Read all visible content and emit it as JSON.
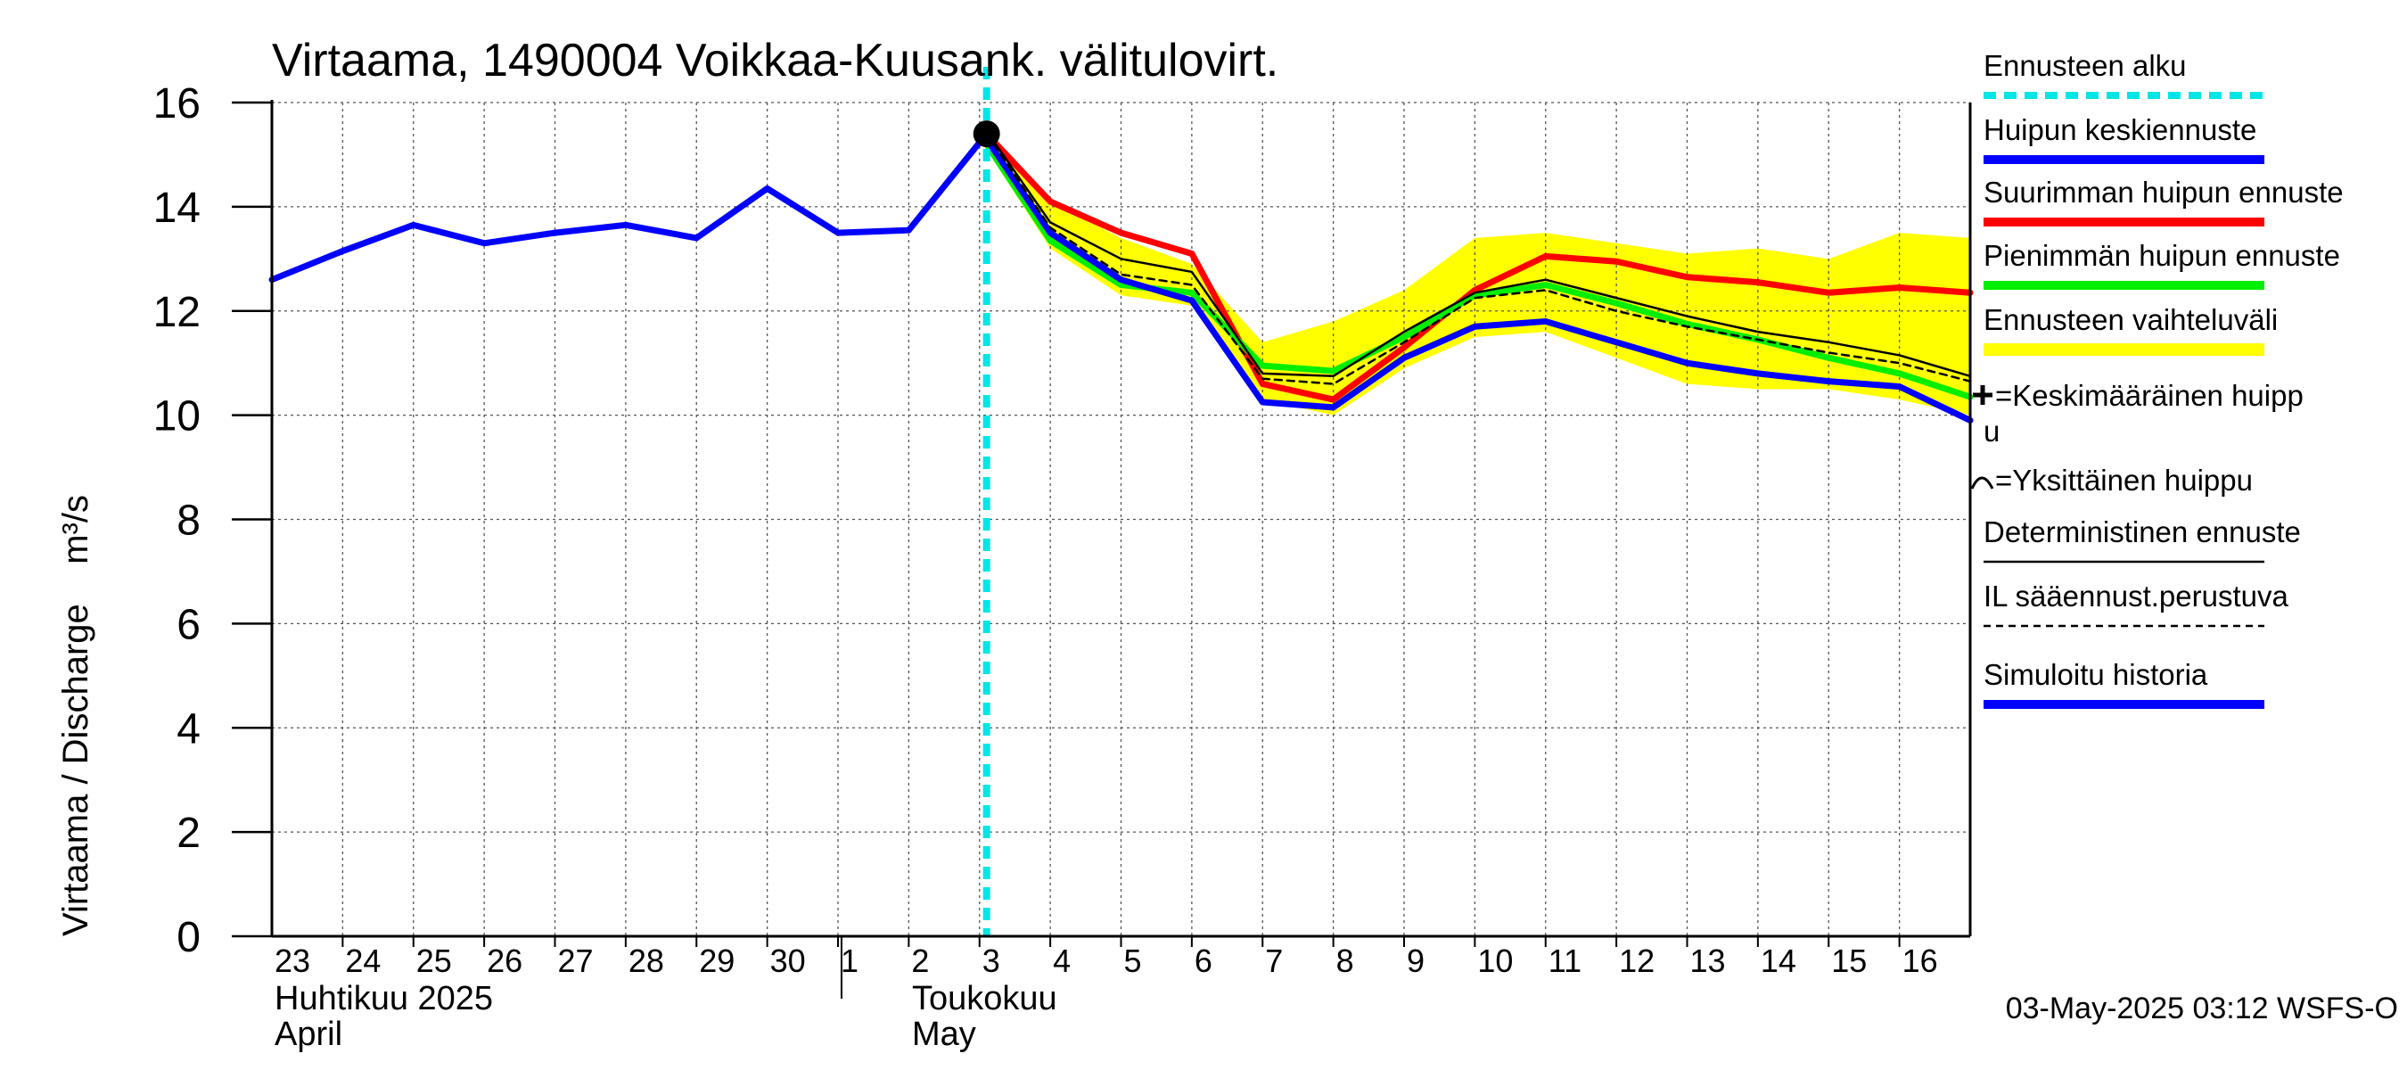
{
  "chart_data": {
    "type": "line",
    "title": "Virtaama, 1490004 Voikkaa-Kuusank. välitulovirt.",
    "ylabel": "Virtaama / Discharge    m³/s",
    "ylim": [
      0,
      16
    ],
    "yticks": [
      0,
      2,
      4,
      6,
      8,
      10,
      12,
      14,
      16
    ],
    "grid": true,
    "x_start_day": "2025-04-23",
    "x_end_offset": 24,
    "day_labels": [
      "23",
      "24",
      "25",
      "26",
      "27",
      "28",
      "29",
      "30",
      "1",
      "2",
      "3",
      "4",
      "5",
      "6",
      "7",
      "8",
      "9",
      "10",
      "11",
      "12",
      "13",
      "14",
      "15",
      "16"
    ],
    "month_labels": [
      {
        "fi": "Huhtikuu  2025",
        "en": "April",
        "day_offset": 0
      },
      {
        "fi": "Toukokuu",
        "en": "May",
        "day_offset": 8
      }
    ],
    "forecast_start": 10.1,
    "peak_marker": {
      "x": 10.1,
      "y": 15.4
    },
    "band": {
      "name": "Ennusteen vaihteluväli",
      "color": "#ffff00",
      "x": [
        10.1,
        11,
        12,
        13,
        14,
        15,
        16,
        17,
        18,
        19,
        20,
        21,
        22,
        23,
        24
      ],
      "upper": [
        15.5,
        14.1,
        13.4,
        12.9,
        11.4,
        11.8,
        12.4,
        13.4,
        13.5,
        13.3,
        13.1,
        13.2,
        13.0,
        13.5,
        13.4
      ],
      "lower": [
        15.1,
        13.2,
        12.3,
        12.1,
        10.3,
        10.0,
        10.9,
        11.5,
        11.6,
        11.1,
        10.6,
        10.5,
        10.5,
        10.3,
        10.0
      ]
    },
    "series": [
      {
        "name": "Simuloitu historia",
        "color": "#0000ff",
        "width": 7,
        "x": [
          0,
          1,
          2,
          3,
          4,
          5,
          6,
          7,
          8,
          9,
          10.1
        ],
        "y": [
          12.6,
          13.15,
          13.65,
          13.3,
          13.5,
          13.65,
          13.4,
          14.35,
          13.5,
          13.55,
          15.4
        ]
      },
      {
        "name": "Suurimman huipun ennuste",
        "color": "#ff0000",
        "width": 7,
        "x": [
          10.1,
          11,
          12,
          13,
          14,
          15,
          16,
          17,
          18,
          19,
          20,
          21,
          22,
          23,
          24
        ],
        "y": [
          15.4,
          14.1,
          13.5,
          13.1,
          10.6,
          10.3,
          11.3,
          12.4,
          13.05,
          12.95,
          12.65,
          12.55,
          12.35,
          12.45,
          12.35
        ]
      },
      {
        "name": "Pienimmän huipun ennuste",
        "color": "#00ee00",
        "width": 7,
        "x": [
          10.1,
          11,
          12,
          13,
          14,
          15,
          16,
          17,
          18,
          19,
          20,
          21,
          22,
          23,
          24
        ],
        "y": [
          15.2,
          13.35,
          12.5,
          12.35,
          10.95,
          10.85,
          11.5,
          12.3,
          12.5,
          12.15,
          11.75,
          11.45,
          11.1,
          10.8,
          10.35
        ]
      },
      {
        "name": "Huipun keskiennuste",
        "color": "#0000ff",
        "width": 7,
        "x": [
          10.1,
          11,
          12,
          13,
          14,
          15,
          16,
          17,
          18,
          19,
          20,
          21,
          22,
          23,
          24
        ],
        "y": [
          15.3,
          13.5,
          12.6,
          12.2,
          10.25,
          10.15,
          11.1,
          11.7,
          11.8,
          11.4,
          11.0,
          10.8,
          10.65,
          10.55,
          9.9
        ]
      },
      {
        "name": "Deterministinen ennuste",
        "color": "#000000",
        "width": 2.5,
        "x": [
          10.1,
          11,
          12,
          13,
          14,
          15,
          16,
          17,
          18,
          19,
          20,
          21,
          22,
          23,
          24
        ],
        "y": [
          15.45,
          13.7,
          13.0,
          12.75,
          10.8,
          10.75,
          11.6,
          12.35,
          12.6,
          12.25,
          11.9,
          11.6,
          11.4,
          11.15,
          10.75
        ]
      },
      {
        "name": "IL sääennust.perustuva",
        "color": "#000000",
        "width": 2.5,
        "dash": "8,6",
        "x": [
          10.1,
          11,
          12,
          13,
          14,
          15,
          16,
          17,
          18,
          19,
          20,
          21,
          22,
          23,
          24
        ],
        "y": [
          15.4,
          13.6,
          12.7,
          12.5,
          10.7,
          10.6,
          11.4,
          12.25,
          12.4,
          12.0,
          11.7,
          11.45,
          11.2,
          11.0,
          10.65
        ]
      }
    ],
    "legend": [
      {
        "label": "Ennusteen alku",
        "style": "cyan-dashed"
      },
      {
        "label": "Huipun keskiennuste",
        "style": "blue"
      },
      {
        "label": "Suurimman huipun ennuste",
        "style": "red"
      },
      {
        "label": "Pienimmän huipun ennuste",
        "style": "green"
      },
      {
        "label": "Ennusteen vaihteluväli",
        "style": "yellow"
      },
      {
        "label": "=Keskimääräinen huipp",
        "label2": "u",
        "style": "plus"
      },
      {
        "label": "=Yksittäinen huippu",
        "style": "arc"
      },
      {
        "label": "Deterministinen ennuste",
        "style": "black-thin"
      },
      {
        "label": "IL sääennust.perustuva",
        "style": "black-dashed"
      },
      {
        "label": "Simuloitu historia",
        "style": "blue"
      }
    ],
    "footer": "03-May-2025 03:12 WSFS-O"
  }
}
